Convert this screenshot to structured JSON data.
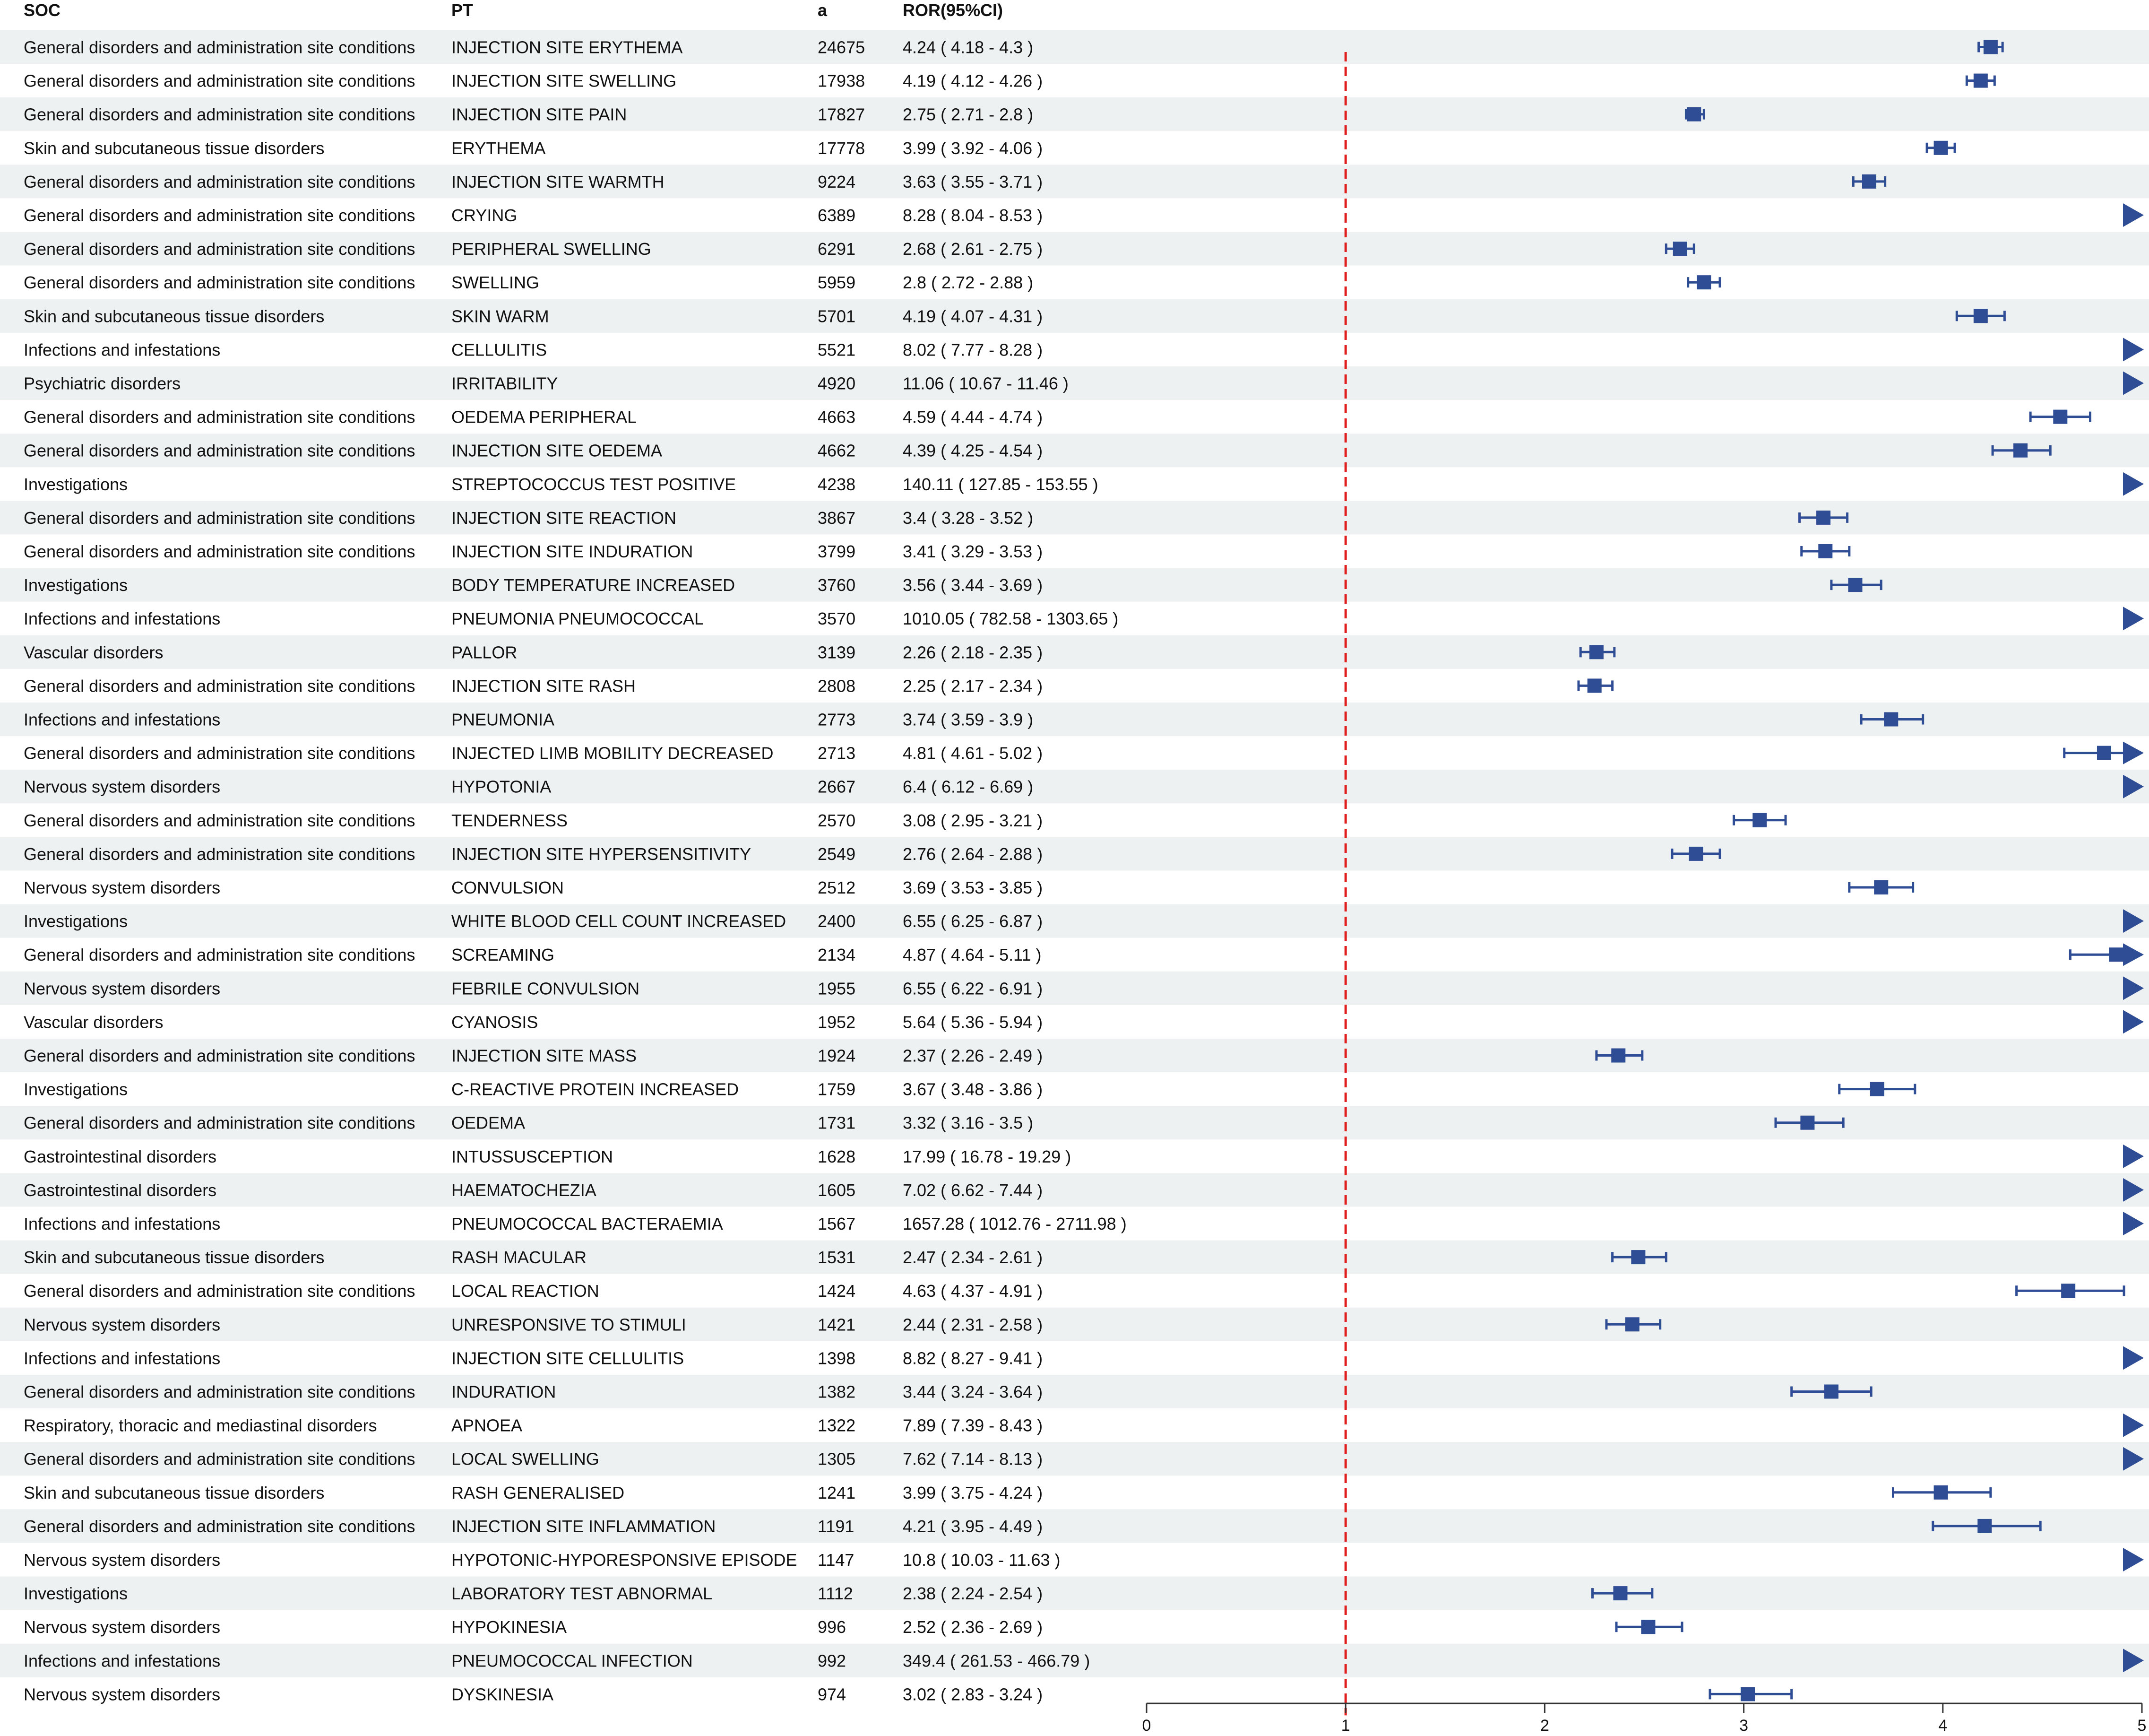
{
  "chart_data": {
    "type": "forest",
    "columns": [
      "SOC",
      "PT",
      "a",
      "ROR(95%CI)"
    ],
    "x_ticks": [
      0,
      1,
      2,
      3,
      4,
      5
    ],
    "xlim": [
      0,
      5
    ],
    "reference_line": 1,
    "colors": {
      "marker": "#2f4d94",
      "reference": "#e02020",
      "row_stripe": "#eef1f1"
    },
    "rows": [
      {
        "soc": "General disorders and administration site conditions",
        "pt": "INJECTION SITE ERYTHEMA",
        "a": "24675",
        "ror_text": "4.24 ( 4.18 - 4.3 )",
        "ror": 4.24,
        "lo": 4.18,
        "hi": 4.3
      },
      {
        "soc": "General disorders and administration site conditions",
        "pt": "INJECTION SITE SWELLING",
        "a": "17938",
        "ror_text": "4.19 ( 4.12 - 4.26 )",
        "ror": 4.19,
        "lo": 4.12,
        "hi": 4.26
      },
      {
        "soc": "General disorders and administration site conditions",
        "pt": "INJECTION SITE PAIN",
        "a": "17827",
        "ror_text": "2.75 ( 2.71 - 2.8 )",
        "ror": 2.75,
        "lo": 2.71,
        "hi": 2.8
      },
      {
        "soc": "Skin and subcutaneous tissue disorders",
        "pt": "ERYTHEMA",
        "a": "17778",
        "ror_text": "3.99 ( 3.92 - 4.06 )",
        "ror": 3.99,
        "lo": 3.92,
        "hi": 4.06
      },
      {
        "soc": "General disorders and administration site conditions",
        "pt": "INJECTION SITE WARMTH",
        "a": "9224",
        "ror_text": "3.63 ( 3.55 - 3.71 )",
        "ror": 3.63,
        "lo": 3.55,
        "hi": 3.71
      },
      {
        "soc": "General disorders and administration site conditions",
        "pt": "CRYING",
        "a": "6389",
        "ror_text": "8.28 ( 8.04 - 8.53 )",
        "ror": 8.28,
        "lo": 8.04,
        "hi": 8.53
      },
      {
        "soc": "General disorders and administration site conditions",
        "pt": "PERIPHERAL SWELLING",
        "a": "6291",
        "ror_text": "2.68 ( 2.61 - 2.75 )",
        "ror": 2.68,
        "lo": 2.61,
        "hi": 2.75
      },
      {
        "soc": "General disorders and administration site conditions",
        "pt": "SWELLING",
        "a": "5959",
        "ror_text": "2.8 ( 2.72 - 2.88 )",
        "ror": 2.8,
        "lo": 2.72,
        "hi": 2.88
      },
      {
        "soc": "Skin and subcutaneous tissue disorders",
        "pt": "SKIN WARM",
        "a": "5701",
        "ror_text": "4.19 ( 4.07 - 4.31 )",
        "ror": 4.19,
        "lo": 4.07,
        "hi": 4.31
      },
      {
        "soc": "Infections and infestations",
        "pt": "CELLULITIS",
        "a": "5521",
        "ror_text": "8.02 ( 7.77 - 8.28 )",
        "ror": 8.02,
        "lo": 7.77,
        "hi": 8.28
      },
      {
        "soc": "Psychiatric disorders",
        "pt": "IRRITABILITY",
        "a": "4920",
        "ror_text": "11.06 ( 10.67 - 11.46 )",
        "ror": 11.06,
        "lo": 10.67,
        "hi": 11.46
      },
      {
        "soc": "General disorders and administration site conditions",
        "pt": "OEDEMA PERIPHERAL",
        "a": "4663",
        "ror_text": "4.59 ( 4.44 - 4.74 )",
        "ror": 4.59,
        "lo": 4.44,
        "hi": 4.74
      },
      {
        "soc": "General disorders and administration site conditions",
        "pt": "INJECTION SITE OEDEMA",
        "a": "4662",
        "ror_text": "4.39 ( 4.25 - 4.54 )",
        "ror": 4.39,
        "lo": 4.25,
        "hi": 4.54
      },
      {
        "soc": "Investigations",
        "pt": "STREPTOCOCCUS TEST POSITIVE",
        "a": "4238",
        "ror_text": "140.11 ( 127.85 - 153.55 )",
        "ror": 140.11,
        "lo": 127.85,
        "hi": 153.55
      },
      {
        "soc": "General disorders and administration site conditions",
        "pt": "INJECTION SITE REACTION",
        "a": "3867",
        "ror_text": "3.4 ( 3.28 - 3.52 )",
        "ror": 3.4,
        "lo": 3.28,
        "hi": 3.52
      },
      {
        "soc": "General disorders and administration site conditions",
        "pt": "INJECTION SITE INDURATION",
        "a": "3799",
        "ror_text": "3.41 ( 3.29 - 3.53 )",
        "ror": 3.41,
        "lo": 3.29,
        "hi": 3.53
      },
      {
        "soc": "Investigations",
        "pt": "BODY TEMPERATURE INCREASED",
        "a": "3760",
        "ror_text": "3.56 ( 3.44 - 3.69 )",
        "ror": 3.56,
        "lo": 3.44,
        "hi": 3.69
      },
      {
        "soc": "Infections and infestations",
        "pt": "PNEUMONIA PNEUMOCOCCAL",
        "a": "3570",
        "ror_text": "1010.05 ( 782.58 - 1303.65 )",
        "ror": 1010.05,
        "lo": 782.58,
        "hi": 1303.65
      },
      {
        "soc": "Vascular disorders",
        "pt": "PALLOR",
        "a": "3139",
        "ror_text": "2.26 ( 2.18 - 2.35 )",
        "ror": 2.26,
        "lo": 2.18,
        "hi": 2.35
      },
      {
        "soc": "General disorders and administration site conditions",
        "pt": "INJECTION SITE RASH",
        "a": "2808",
        "ror_text": "2.25 ( 2.17 - 2.34 )",
        "ror": 2.25,
        "lo": 2.17,
        "hi": 2.34
      },
      {
        "soc": "Infections and infestations",
        "pt": "PNEUMONIA",
        "a": "2773",
        "ror_text": "3.74 ( 3.59 - 3.9 )",
        "ror": 3.74,
        "lo": 3.59,
        "hi": 3.9
      },
      {
        "soc": "General disorders and administration site conditions",
        "pt": "INJECTED LIMB MOBILITY DECREASED",
        "a": "2713",
        "ror_text": "4.81 ( 4.61 - 5.02 )",
        "ror": 4.81,
        "lo": 4.61,
        "hi": 5.02
      },
      {
        "soc": "Nervous system disorders",
        "pt": "HYPOTONIA",
        "a": "2667",
        "ror_text": "6.4 ( 6.12 - 6.69 )",
        "ror": 6.4,
        "lo": 6.12,
        "hi": 6.69
      },
      {
        "soc": "General disorders and administration site conditions",
        "pt": "TENDERNESS",
        "a": "2570",
        "ror_text": "3.08 ( 2.95 - 3.21 )",
        "ror": 3.08,
        "lo": 2.95,
        "hi": 3.21
      },
      {
        "soc": "General disorders and administration site conditions",
        "pt": "INJECTION SITE HYPERSENSITIVITY",
        "a": "2549",
        "ror_text": "2.76 ( 2.64 - 2.88 )",
        "ror": 2.76,
        "lo": 2.64,
        "hi": 2.88
      },
      {
        "soc": "Nervous system disorders",
        "pt": "CONVULSION",
        "a": "2512",
        "ror_text": "3.69 ( 3.53 - 3.85 )",
        "ror": 3.69,
        "lo": 3.53,
        "hi": 3.85
      },
      {
        "soc": "Investigations",
        "pt": "WHITE BLOOD CELL COUNT INCREASED",
        "a": "2400",
        "ror_text": "6.55 ( 6.25 - 6.87 )",
        "ror": 6.55,
        "lo": 6.25,
        "hi": 6.87
      },
      {
        "soc": "General disorders and administration site conditions",
        "pt": "SCREAMING",
        "a": "2134",
        "ror_text": "4.87 ( 4.64 - 5.11 )",
        "ror": 4.87,
        "lo": 4.64,
        "hi": 5.11
      },
      {
        "soc": "Nervous system disorders",
        "pt": "FEBRILE CONVULSION",
        "a": "1955",
        "ror_text": "6.55 ( 6.22 - 6.91 )",
        "ror": 6.55,
        "lo": 6.22,
        "hi": 6.91
      },
      {
        "soc": "Vascular disorders",
        "pt": "CYANOSIS",
        "a": "1952",
        "ror_text": "5.64 ( 5.36 - 5.94 )",
        "ror": 5.64,
        "lo": 5.36,
        "hi": 5.94
      },
      {
        "soc": "General disorders and administration site conditions",
        "pt": "INJECTION SITE MASS",
        "a": "1924",
        "ror_text": "2.37 ( 2.26 - 2.49 )",
        "ror": 2.37,
        "lo": 2.26,
        "hi": 2.49
      },
      {
        "soc": "Investigations",
        "pt": "C-REACTIVE PROTEIN INCREASED",
        "a": "1759",
        "ror_text": "3.67 ( 3.48 - 3.86 )",
        "ror": 3.67,
        "lo": 3.48,
        "hi": 3.86
      },
      {
        "soc": "General disorders and administration site conditions",
        "pt": "OEDEMA",
        "a": "1731",
        "ror_text": "3.32 ( 3.16 - 3.5 )",
        "ror": 3.32,
        "lo": 3.16,
        "hi": 3.5
      },
      {
        "soc": "Gastrointestinal disorders",
        "pt": "INTUSSUSCEPTION",
        "a": "1628",
        "ror_text": "17.99 ( 16.78 - 19.29 )",
        "ror": 17.99,
        "lo": 16.78,
        "hi": 19.29
      },
      {
        "soc": "Gastrointestinal disorders",
        "pt": "HAEMATOCHEZIA",
        "a": "1605",
        "ror_text": "7.02 ( 6.62 - 7.44 )",
        "ror": 7.02,
        "lo": 6.62,
        "hi": 7.44
      },
      {
        "soc": "Infections and infestations",
        "pt": "PNEUMOCOCCAL BACTERAEMIA",
        "a": "1567",
        "ror_text": "1657.28 ( 1012.76 - 2711.98 )",
        "ror": 1657.28,
        "lo": 1012.76,
        "hi": 2711.98
      },
      {
        "soc": "Skin and subcutaneous tissue disorders",
        "pt": "RASH MACULAR",
        "a": "1531",
        "ror_text": "2.47 ( 2.34 - 2.61 )",
        "ror": 2.47,
        "lo": 2.34,
        "hi": 2.61
      },
      {
        "soc": "General disorders and administration site conditions",
        "pt": "LOCAL REACTION",
        "a": "1424",
        "ror_text": "4.63 ( 4.37 - 4.91 )",
        "ror": 4.63,
        "lo": 4.37,
        "hi": 4.91
      },
      {
        "soc": "Nervous system disorders",
        "pt": "UNRESPONSIVE TO STIMULI",
        "a": "1421",
        "ror_text": "2.44 ( 2.31 - 2.58 )",
        "ror": 2.44,
        "lo": 2.31,
        "hi": 2.58
      },
      {
        "soc": "Infections and infestations",
        "pt": "INJECTION SITE CELLULITIS",
        "a": "1398",
        "ror_text": "8.82 ( 8.27 - 9.41 )",
        "ror": 8.82,
        "lo": 8.27,
        "hi": 9.41
      },
      {
        "soc": "General disorders and administration site conditions",
        "pt": "INDURATION",
        "a": "1382",
        "ror_text": "3.44 ( 3.24 - 3.64 )",
        "ror": 3.44,
        "lo": 3.24,
        "hi": 3.64
      },
      {
        "soc": "Respiratory, thoracic and mediastinal disorders",
        "pt": "APNOEA",
        "a": "1322",
        "ror_text": "7.89 ( 7.39 - 8.43 )",
        "ror": 7.89,
        "lo": 7.39,
        "hi": 8.43
      },
      {
        "soc": "General disorders and administration site conditions",
        "pt": "LOCAL SWELLING",
        "a": "1305",
        "ror_text": "7.62 ( 7.14 - 8.13 )",
        "ror": 7.62,
        "lo": 7.14,
        "hi": 8.13
      },
      {
        "soc": "Skin and subcutaneous tissue disorders",
        "pt": "RASH GENERALISED",
        "a": "1241",
        "ror_text": "3.99 ( 3.75 - 4.24 )",
        "ror": 3.99,
        "lo": 3.75,
        "hi": 4.24
      },
      {
        "soc": "General disorders and administration site conditions",
        "pt": "INJECTION SITE INFLAMMATION",
        "a": "1191",
        "ror_text": "4.21 ( 3.95 - 4.49 )",
        "ror": 4.21,
        "lo": 3.95,
        "hi": 4.49
      },
      {
        "soc": "Nervous system disorders",
        "pt": "HYPOTONIC-HYPORESPONSIVE EPISODE",
        "a": "1147",
        "ror_text": "10.8 ( 10.03 - 11.63 )",
        "ror": 10.8,
        "lo": 10.03,
        "hi": 11.63
      },
      {
        "soc": "Investigations",
        "pt": "LABORATORY TEST ABNORMAL",
        "a": "1112",
        "ror_text": "2.38 ( 2.24 - 2.54 )",
        "ror": 2.38,
        "lo": 2.24,
        "hi": 2.54
      },
      {
        "soc": "Nervous system disorders",
        "pt": "HYPOKINESIA",
        "a": "996",
        "ror_text": "2.52 ( 2.36 - 2.69 )",
        "ror": 2.52,
        "lo": 2.36,
        "hi": 2.69
      },
      {
        "soc": "Infections and infestations",
        "pt": "PNEUMOCOCCAL INFECTION",
        "a": "992",
        "ror_text": "349.4 ( 261.53 - 466.79 )",
        "ror": 349.4,
        "lo": 261.53,
        "hi": 466.79
      },
      {
        "soc": "Nervous system disorders",
        "pt": "DYSKINESIA",
        "a": "974",
        "ror_text": "3.02 ( 2.83 - 3.24 )",
        "ror": 3.02,
        "lo": 2.83,
        "hi": 3.24
      }
    ]
  }
}
